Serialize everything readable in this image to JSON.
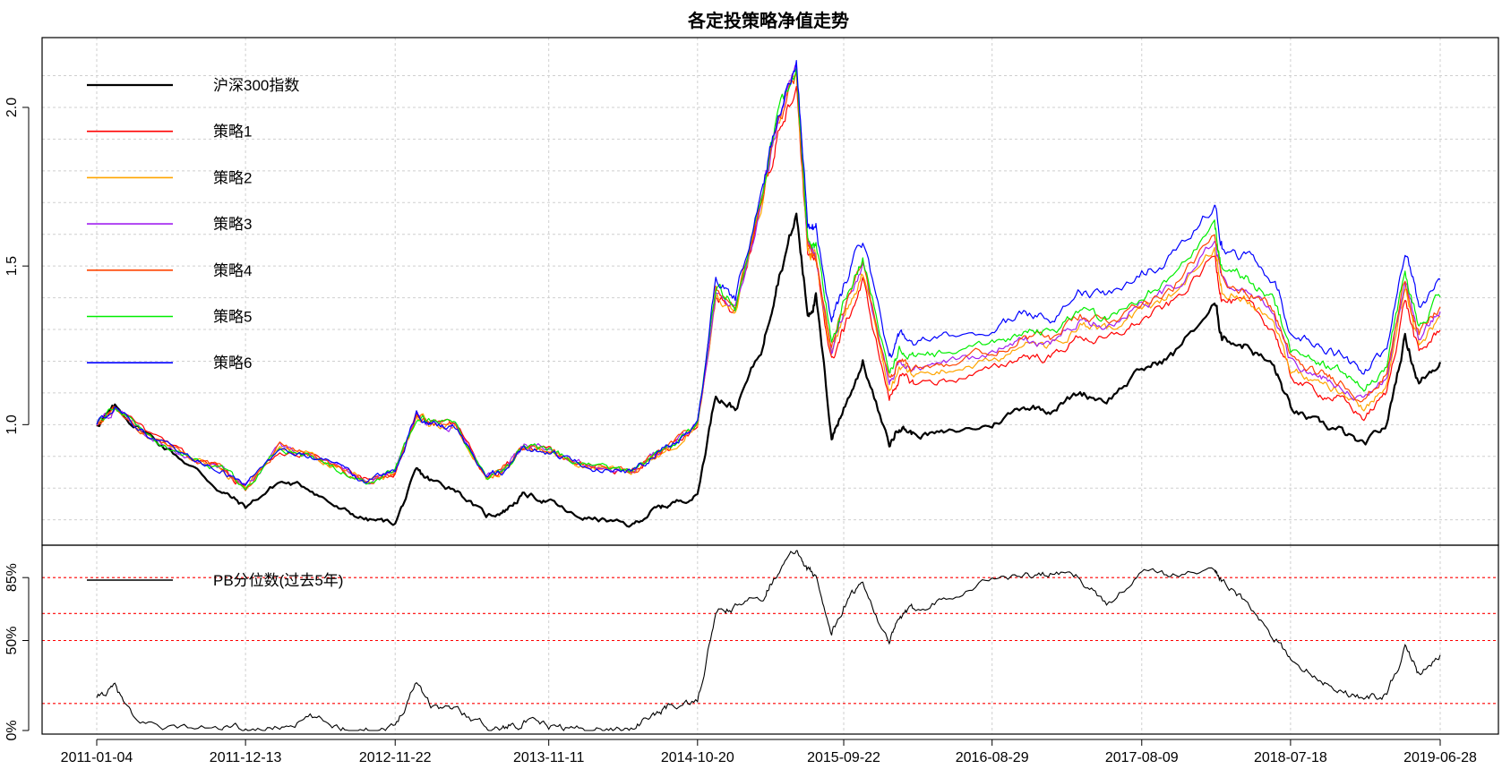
{
  "chart_data": [
    {
      "type": "line",
      "title": "各定投策略净值走势",
      "x_tick_labels": [
        "2011-01-04",
        "2011-12-13",
        "2012-11-22",
        "2013-11-11",
        "2014-10-20",
        "2015-09-22",
        "2016-08-29",
        "2017-08-09",
        "2018-07-18",
        "2019-06-28"
      ],
      "y_ticks": [
        1.0,
        1.5,
        2.0
      ],
      "y_tick_labels": [
        "1.0",
        "1.5",
        "2.0"
      ],
      "ylim": [
        0.62,
        2.22
      ],
      "grid": true,
      "legend_position": "top-left",
      "x_dates": [
        "2011-01-04",
        "2011-02-15",
        "2011-05-01",
        "2011-08-01",
        "2011-10-20",
        "2011-12-13",
        "2012-03-01",
        "2012-05-10",
        "2012-07-20",
        "2012-09-20",
        "2012-11-22",
        "2013-01-10",
        "2013-02-15",
        "2013-04-10",
        "2013-06-20",
        "2013-08-01",
        "2013-09-15",
        "2013-11-11",
        "2014-01-10",
        "2014-03-15",
        "2014-05-20",
        "2014-07-10",
        "2014-08-20",
        "2014-10-20",
        "2014-12-01",
        "2015-01-15",
        "2015-03-20",
        "2015-04-20",
        "2015-06-05",
        "2015-07-01",
        "2015-07-20",
        "2015-08-25",
        "2015-09-22",
        "2015-11-05",
        "2016-01-05",
        "2016-01-28",
        "2016-03-01",
        "2016-05-15",
        "2016-08-29",
        "2016-11-10",
        "2017-01-10",
        "2017-03-20",
        "2017-05-20",
        "2017-08-09",
        "2017-10-20",
        "2018-01-24",
        "2018-02-10",
        "2018-04-10",
        "2018-06-10",
        "2018-07-18",
        "2018-09-20",
        "2018-11-10",
        "2019-01-03",
        "2019-02-25",
        "2019-04-08",
        "2019-05-10",
        "2019-06-28"
      ],
      "series": [
        {
          "name": "沪深300指数",
          "color": "#000000",
          "width": 2.2,
          "values": [
            1.0,
            1.05,
            0.97,
            0.88,
            0.79,
            0.74,
            0.82,
            0.8,
            0.73,
            0.7,
            0.69,
            0.85,
            0.82,
            0.8,
            0.71,
            0.73,
            0.78,
            0.76,
            0.71,
            0.7,
            0.68,
            0.73,
            0.75,
            0.78,
            1.1,
            1.05,
            1.25,
            1.45,
            1.66,
            1.35,
            1.4,
            0.96,
            1.05,
            1.2,
            0.93,
            1.0,
            0.97,
            0.97,
            1.0,
            1.06,
            1.05,
            1.1,
            1.08,
            1.17,
            1.22,
            1.38,
            1.28,
            1.25,
            1.18,
            1.05,
            1.0,
            0.98,
            0.93,
            1.0,
            1.28,
            1.13,
            1.2
          ]
        },
        {
          "name": "策略1",
          "color": "#ff0000",
          "width": 1.2,
          "values": [
            1.0,
            1.05,
            0.97,
            0.9,
            0.86,
            0.8,
            0.93,
            0.9,
            0.86,
            0.82,
            0.85,
            1.03,
            1.0,
            1.0,
            0.83,
            0.86,
            0.93,
            0.92,
            0.88,
            0.86,
            0.85,
            0.9,
            0.93,
            1.0,
            1.4,
            1.35,
            1.7,
            1.92,
            2.08,
            1.55,
            1.5,
            1.2,
            1.3,
            1.45,
            1.08,
            1.15,
            1.13,
            1.14,
            1.17,
            1.22,
            1.21,
            1.28,
            1.26,
            1.33,
            1.38,
            1.53,
            1.4,
            1.37,
            1.3,
            1.15,
            1.1,
            1.08,
            1.02,
            1.1,
            1.4,
            1.22,
            1.3
          ]
        },
        {
          "name": "策略2",
          "color": "#ffa500",
          "width": 1.2,
          "values": [
            1.0,
            1.05,
            0.97,
            0.9,
            0.86,
            0.8,
            0.93,
            0.9,
            0.86,
            0.82,
            0.85,
            1.03,
            1.0,
            1.0,
            0.83,
            0.86,
            0.93,
            0.92,
            0.88,
            0.86,
            0.85,
            0.9,
            0.93,
            1.0,
            1.41,
            1.36,
            1.71,
            1.93,
            2.09,
            1.56,
            1.52,
            1.22,
            1.33,
            1.48,
            1.11,
            1.18,
            1.16,
            1.17,
            1.2,
            1.25,
            1.24,
            1.31,
            1.29,
            1.36,
            1.41,
            1.56,
            1.43,
            1.4,
            1.33,
            1.18,
            1.13,
            1.11,
            1.05,
            1.13,
            1.43,
            1.25,
            1.34
          ]
        },
        {
          "name": "策略3",
          "color": "#a020f0",
          "width": 1.2,
          "values": [
            1.0,
            1.05,
            0.97,
            0.9,
            0.86,
            0.8,
            0.93,
            0.9,
            0.86,
            0.82,
            0.85,
            1.03,
            1.0,
            1.0,
            0.83,
            0.86,
            0.93,
            0.92,
            0.88,
            0.86,
            0.85,
            0.9,
            0.93,
            1.0,
            1.42,
            1.37,
            1.72,
            1.94,
            2.1,
            1.57,
            1.53,
            1.24,
            1.35,
            1.5,
            1.13,
            1.2,
            1.18,
            1.19,
            1.22,
            1.27,
            1.26,
            1.33,
            1.31,
            1.38,
            1.43,
            1.58,
            1.45,
            1.42,
            1.35,
            1.2,
            1.15,
            1.13,
            1.07,
            1.15,
            1.45,
            1.27,
            1.36
          ]
        },
        {
          "name": "策略4",
          "color": "#ff4500",
          "width": 1.2,
          "values": [
            1.0,
            1.05,
            0.97,
            0.9,
            0.86,
            0.8,
            0.93,
            0.9,
            0.86,
            0.82,
            0.85,
            1.03,
            1.0,
            1.0,
            0.83,
            0.86,
            0.93,
            0.92,
            0.88,
            0.86,
            0.85,
            0.9,
            0.93,
            1.0,
            1.42,
            1.37,
            1.72,
            1.94,
            2.1,
            1.57,
            1.54,
            1.25,
            1.36,
            1.51,
            1.14,
            1.21,
            1.19,
            1.2,
            1.23,
            1.28,
            1.27,
            1.34,
            1.32,
            1.39,
            1.44,
            1.59,
            1.46,
            1.43,
            1.36,
            1.21,
            1.16,
            1.14,
            1.08,
            1.16,
            1.46,
            1.28,
            1.37
          ]
        },
        {
          "name": "策略5",
          "color": "#00ee00",
          "width": 1.2,
          "values": [
            1.0,
            1.05,
            0.97,
            0.9,
            0.86,
            0.8,
            0.93,
            0.9,
            0.86,
            0.82,
            0.85,
            1.03,
            1.0,
            1.0,
            0.83,
            0.86,
            0.93,
            0.92,
            0.88,
            0.86,
            0.85,
            0.9,
            0.93,
            1.0,
            1.43,
            1.38,
            1.73,
            1.95,
            2.11,
            1.58,
            1.56,
            1.27,
            1.38,
            1.53,
            1.16,
            1.23,
            1.21,
            1.22,
            1.25,
            1.3,
            1.29,
            1.36,
            1.34,
            1.41,
            1.46,
            1.62,
            1.49,
            1.46,
            1.39,
            1.24,
            1.19,
            1.17,
            1.11,
            1.19,
            1.49,
            1.31,
            1.4
          ]
        },
        {
          "name": "策略6",
          "color": "#0000ff",
          "width": 1.2,
          "values": [
            1.0,
            1.05,
            0.97,
            0.9,
            0.86,
            0.8,
            0.93,
            0.9,
            0.86,
            0.82,
            0.85,
            1.03,
            1.0,
            1.0,
            0.83,
            0.86,
            0.93,
            0.92,
            0.88,
            0.86,
            0.85,
            0.9,
            0.93,
            1.0,
            1.45,
            1.4,
            1.75,
            1.98,
            2.15,
            1.62,
            1.62,
            1.33,
            1.44,
            1.58,
            1.21,
            1.28,
            1.26,
            1.27,
            1.3,
            1.35,
            1.34,
            1.42,
            1.4,
            1.48,
            1.53,
            1.7,
            1.56,
            1.53,
            1.46,
            1.3,
            1.25,
            1.22,
            1.16,
            1.24,
            1.56,
            1.38,
            1.46
          ]
        }
      ]
    },
    {
      "type": "line",
      "y_ticks": [
        0,
        50,
        85
      ],
      "y_tick_labels": [
        "0%",
        "50%",
        "85%"
      ],
      "ylim": [
        -2,
        103
      ],
      "reference_lines": {
        "values": [
          15,
          50,
          65,
          85
        ],
        "color": "#ff0000"
      },
      "legend_position": "top-left",
      "x_dates": [
        "2011-01-04",
        "2011-02-15",
        "2011-04-01",
        "2011-07-01",
        "2011-10-20",
        "2011-12-13",
        "2012-03-01",
        "2012-05-10",
        "2012-07-20",
        "2012-09-20",
        "2012-11-22",
        "2013-01-10",
        "2013-02-15",
        "2013-04-10",
        "2013-06-20",
        "2013-08-01",
        "2013-09-15",
        "2013-11-11",
        "2014-01-10",
        "2014-03-15",
        "2014-05-20",
        "2014-07-10",
        "2014-08-20",
        "2014-10-20",
        "2014-12-01",
        "2015-01-15",
        "2015-03-20",
        "2015-04-20",
        "2015-06-05",
        "2015-07-01",
        "2015-07-20",
        "2015-08-25",
        "2015-09-22",
        "2015-11-05",
        "2016-01-05",
        "2016-01-28",
        "2016-03-01",
        "2016-05-15",
        "2016-08-29",
        "2016-11-10",
        "2017-01-10",
        "2017-03-20",
        "2017-05-20",
        "2017-08-09",
        "2017-10-20",
        "2018-01-24",
        "2018-02-10",
        "2018-04-10",
        "2018-06-10",
        "2018-07-18",
        "2018-09-20",
        "2018-11-10",
        "2019-01-03",
        "2019-02-25",
        "2019-04-08",
        "2019-05-10",
        "2019-06-28"
      ],
      "series": [
        {
          "name": "PB分位数(过去5年)",
          "color": "#000000",
          "width": 1.1,
          "values": [
            18,
            24,
            5,
            2,
            1,
            0,
            2,
            7,
            2,
            1,
            2,
            28,
            14,
            12,
            2,
            2,
            5,
            2,
            1,
            0,
            2,
            8,
            14,
            15,
            65,
            68,
            75,
            88,
            100,
            90,
            85,
            55,
            68,
            83,
            48,
            62,
            67,
            75,
            85,
            86,
            87,
            85,
            70,
            88,
            86,
            89,
            85,
            70,
            50,
            40,
            30,
            22,
            18,
            20,
            46,
            30,
            42
          ]
        }
      ]
    }
  ]
}
